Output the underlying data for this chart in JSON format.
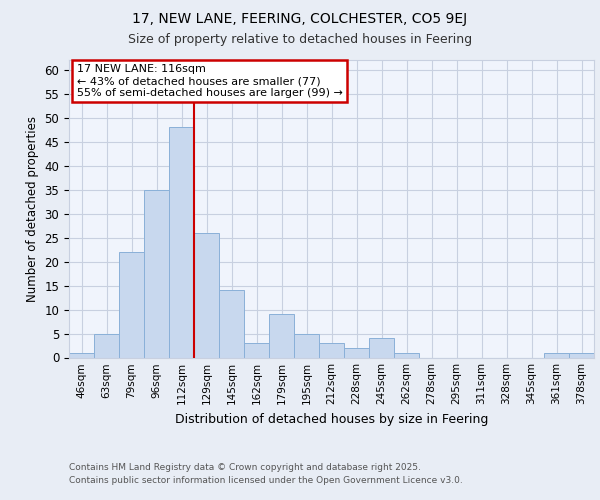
{
  "title1": "17, NEW LANE, FEERING, COLCHESTER, CO5 9EJ",
  "title2": "Size of property relative to detached houses in Feering",
  "xlabel": "Distribution of detached houses by size in Feering",
  "ylabel": "Number of detached properties",
  "bin_labels": [
    "46sqm",
    "63sqm",
    "79sqm",
    "96sqm",
    "112sqm",
    "129sqm",
    "145sqm",
    "162sqm",
    "179sqm",
    "195sqm",
    "212sqm",
    "228sqm",
    "245sqm",
    "262sqm",
    "278sqm",
    "295sqm",
    "311sqm",
    "328sqm",
    "345sqm",
    "361sqm",
    "378sqm"
  ],
  "bar_values": [
    1,
    5,
    22,
    35,
    48,
    26,
    14,
    3,
    9,
    5,
    3,
    2,
    4,
    1,
    0,
    0,
    0,
    0,
    0,
    1,
    1
  ],
  "bar_color": "#c8d8ee",
  "bar_edge_color": "#8ab0d8",
  "vline_color": "#cc0000",
  "vline_x_index": 4,
  "annotation_title": "17 NEW LANE: 116sqm",
  "annotation_line1": "← 43% of detached houses are smaller (77)",
  "annotation_line2": "55% of semi-detached houses are larger (99) →",
  "annotation_box_color": "#cc0000",
  "ylim": [
    0,
    62
  ],
  "yticks": [
    0,
    5,
    10,
    15,
    20,
    25,
    30,
    35,
    40,
    45,
    50,
    55,
    60
  ],
  "footer_line1": "Contains HM Land Registry data © Crown copyright and database right 2025.",
  "footer_line2": "Contains public sector information licensed under the Open Government Licence v3.0.",
  "background_color": "#e8edf5",
  "plot_background": "#f0f4fc",
  "grid_color": "#c8d0e0"
}
